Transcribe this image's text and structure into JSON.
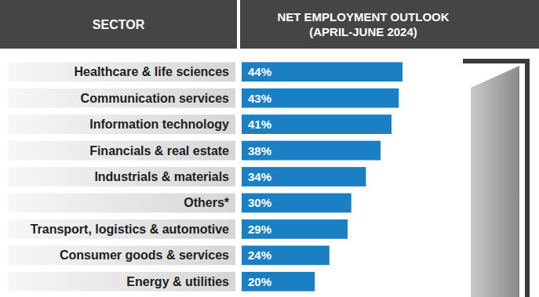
{
  "chart_data": {
    "type": "bar",
    "orientation": "horizontal",
    "title": "NET EMPLOYMENT OUTLOOK (APRIL-JUNE 2024)",
    "ylabel": "SECTOR",
    "categories": [
      "Healthcare & life sciences",
      "Communication services",
      "Information technology",
      "Financials & real estate",
      "Industrials & materials",
      "Others*",
      "Transport, logistics & automotive",
      "Consumer goods & services",
      "Energy & utilities"
    ],
    "values": [
      44,
      43,
      41,
      38,
      34,
      30,
      29,
      24,
      20
    ],
    "value_labels": [
      "44%",
      "43%",
      "41%",
      "38%",
      "34%",
      "30%",
      "29%",
      "24%",
      "20%"
    ],
    "color": "#1b7fc4",
    "data_labels": true,
    "tick_labels": "y"
  }
}
